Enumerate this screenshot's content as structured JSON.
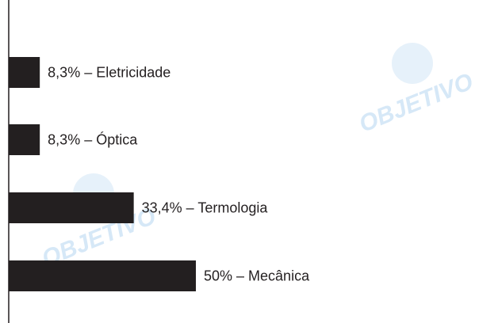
{
  "chart_data": {
    "type": "bar",
    "orientation": "horizontal",
    "values": [
      8.3,
      8.3,
      33.4,
      50
    ],
    "value_labels": [
      "8,3% – Eletricidade",
      "8,3% – Óptica",
      "33,4% – Termologia",
      "50% – Mecânica"
    ],
    "color": "#231f20",
    "watermark": "OBJETIVO"
  }
}
